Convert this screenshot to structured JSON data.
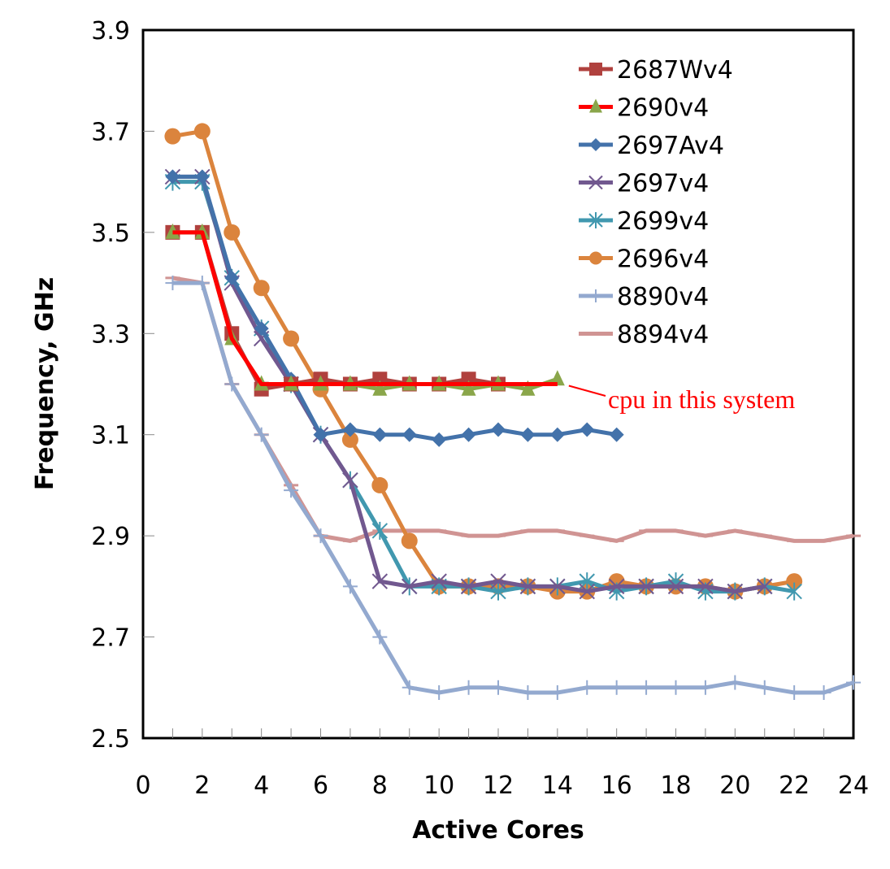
{
  "chart_data": {
    "type": "line",
    "title": "",
    "xlabel": "Active Cores",
    "ylabel": "Frequency, GHz",
    "xlim": [
      0,
      24
    ],
    "ylim": [
      2.5,
      3.9
    ],
    "xticks": [
      0,
      2,
      4,
      6,
      8,
      10,
      12,
      14,
      16,
      18,
      20,
      22,
      24
    ],
    "xtick_labels": [
      "0",
      "2",
      "4",
      "6",
      "8",
      "10",
      "12",
      "14",
      "16",
      "18",
      "20",
      "22",
      "24"
    ],
    "yticks": [
      2.5,
      2.7,
      2.9,
      3.1,
      3.3,
      3.5,
      3.7,
      3.9
    ],
    "ytick_labels": [
      "2.5",
      "2.7",
      "2.9",
      "3.1",
      "3.3",
      "3.5",
      "3.7",
      "3.9"
    ],
    "grid": false,
    "legend_position": "top-right",
    "series": [
      {
        "name": "2687Wv4",
        "color": "#b0413e",
        "marker": "square",
        "x": [
          1,
          2,
          3,
          4,
          5,
          6,
          7,
          8,
          9,
          10,
          11,
          12
        ],
        "values": [
          3.5,
          3.5,
          3.3,
          3.19,
          3.2,
          3.21,
          3.2,
          3.21,
          3.2,
          3.2,
          3.21,
          3.2
        ]
      },
      {
        "name": "2690v4",
        "color": "#8aa64a",
        "line_color": "#ff0000",
        "marker": "triangle",
        "x": [
          1,
          2,
          3,
          4,
          5,
          6,
          7,
          8,
          9,
          10,
          11,
          12,
          13,
          14
        ],
        "values": [
          3.5,
          3.5,
          3.29,
          3.2,
          3.2,
          3.2,
          3.2,
          3.19,
          3.2,
          3.2,
          3.19,
          3.2,
          3.19,
          3.21
        ]
      },
      {
        "name": "2697Av4",
        "color": "#4372aa",
        "marker": "diamond",
        "x": [
          1,
          2,
          3,
          4,
          5,
          6,
          7,
          8,
          9,
          10,
          11,
          12,
          13,
          14,
          15,
          16
        ],
        "values": [
          3.61,
          3.61,
          3.41,
          3.31,
          3.21,
          3.1,
          3.11,
          3.1,
          3.1,
          3.09,
          3.1,
          3.11,
          3.1,
          3.1,
          3.11,
          3.1
        ]
      },
      {
        "name": "2697v4",
        "color": "#71588f",
        "marker": "x",
        "x": [
          1,
          2,
          3,
          4,
          5,
          6,
          7,
          8,
          9,
          10,
          11,
          12,
          13,
          14,
          15,
          16,
          17,
          18,
          19,
          20,
          21
        ],
        "values": [
          3.61,
          3.61,
          3.4,
          3.29,
          3.2,
          3.1,
          3.01,
          2.81,
          2.8,
          2.81,
          2.8,
          2.81,
          2.8,
          2.8,
          2.79,
          2.8,
          2.8,
          2.8,
          2.8,
          2.79,
          2.8
        ]
      },
      {
        "name": "2699v4",
        "color": "#4198af",
        "marker": "star",
        "x": [
          1,
          2,
          3,
          4,
          5,
          6,
          7,
          8,
          9,
          10,
          11,
          12,
          13,
          14,
          15,
          16,
          17,
          18,
          19,
          20,
          21,
          22
        ],
        "values": [
          3.6,
          3.6,
          3.41,
          3.31,
          3.2,
          3.1,
          3.01,
          2.91,
          2.8,
          2.8,
          2.8,
          2.79,
          2.8,
          2.8,
          2.81,
          2.79,
          2.8,
          2.81,
          2.79,
          2.79,
          2.8,
          2.79
        ]
      },
      {
        "name": "2696v4",
        "color": "#db843d",
        "marker": "circle",
        "x": [
          1,
          2,
          3,
          4,
          5,
          6,
          7,
          8,
          9,
          10,
          11,
          12,
          13,
          14,
          15,
          16,
          17,
          18,
          19,
          20,
          21,
          22
        ],
        "values": [
          3.69,
          3.7,
          3.5,
          3.39,
          3.29,
          3.19,
          3.09,
          3.0,
          2.89,
          2.8,
          2.8,
          2.8,
          2.8,
          2.79,
          2.79,
          2.81,
          2.8,
          2.8,
          2.8,
          2.79,
          2.8,
          2.81
        ]
      },
      {
        "name": "8890v4",
        "color": "#93a9cf",
        "marker": "plus",
        "x": [
          1,
          2,
          3,
          4,
          5,
          6,
          7,
          8,
          9,
          10,
          11,
          12,
          13,
          14,
          15,
          16,
          17,
          18,
          19,
          20,
          21,
          22,
          23,
          24
        ],
        "values": [
          3.4,
          3.4,
          3.2,
          3.1,
          2.99,
          2.9,
          2.8,
          2.7,
          2.6,
          2.59,
          2.6,
          2.6,
          2.59,
          2.59,
          2.6,
          2.6,
          2.6,
          2.6,
          2.6,
          2.61,
          2.6,
          2.59,
          2.59,
          2.61
        ]
      },
      {
        "name": "8894v4",
        "color": "#d09493",
        "marker": "dash",
        "x": [
          1,
          2,
          3,
          4,
          5,
          6,
          7,
          8,
          9,
          10,
          11,
          12,
          13,
          14,
          15,
          16,
          17,
          18,
          19,
          20,
          21,
          22,
          23,
          24
        ],
        "values": [
          3.41,
          3.4,
          3.2,
          3.1,
          3.0,
          2.9,
          2.89,
          2.91,
          2.91,
          2.91,
          2.9,
          2.9,
          2.91,
          2.91,
          2.9,
          2.89,
          2.91,
          2.91,
          2.9,
          2.91,
          2.9,
          2.89,
          2.89,
          2.9
        ]
      }
    ],
    "highlight_line": {
      "label": "2690v4 (highlighted)",
      "color": "#ff0000",
      "x": [
        1,
        2,
        3,
        4,
        14
      ],
      "values": [
        3.5,
        3.5,
        3.29,
        3.2,
        3.2
      ]
    },
    "annotations": [
      {
        "text": "cpu in this system",
        "color": "#ff0000",
        "points_to": {
          "x": 14,
          "y": 3.2
        }
      }
    ]
  }
}
